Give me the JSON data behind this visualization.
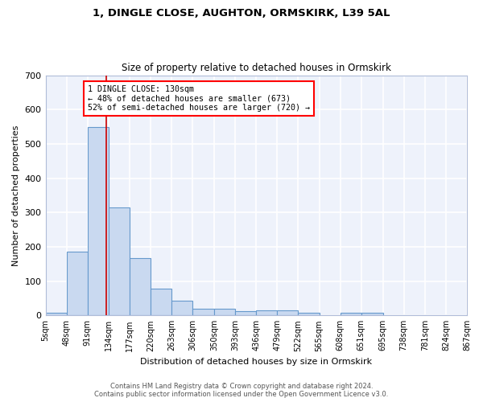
{
  "title1": "1, DINGLE CLOSE, AUGHTON, ORMSKIRK, L39 5AL",
  "title2": "Size of property relative to detached houses in Ormskirk",
  "xlabel": "Distribution of detached houses by size in Ormskirk",
  "ylabel": "Number of detached properties",
  "bar_edges": [
    5,
    48,
    91,
    134,
    177,
    220,
    263,
    306,
    350,
    393,
    436,
    479,
    522,
    565,
    608,
    651,
    695,
    738,
    781,
    824,
    867
  ],
  "bar_heights": [
    8,
    185,
    548,
    315,
    168,
    77,
    42,
    20,
    20,
    13,
    15,
    15,
    8,
    0,
    7,
    8,
    0,
    0,
    0,
    0
  ],
  "bar_color": "#c9d9f0",
  "bar_edge_color": "#6699cc",
  "bar_linewidth": 0.8,
  "red_line_x": 130,
  "annotation_text": "1 DINGLE CLOSE: 130sqm\n← 48% of detached houses are smaller (673)\n52% of semi-detached houses are larger (720) →",
  "annotation_box_color": "white",
  "annotation_box_edge": "red",
  "ylim": [
    0,
    700
  ],
  "yticks": [
    0,
    100,
    200,
    300,
    400,
    500,
    600,
    700
  ],
  "background_color": "#eef2fb",
  "grid_color": "white",
  "footer": "Contains HM Land Registry data © Crown copyright and database right 2024.\nContains public sector information licensed under the Open Government Licence v3.0.",
  "tick_labels": [
    "5sqm",
    "48sqm",
    "91sqm",
    "134sqm",
    "177sqm",
    "220sqm",
    "263sqm",
    "306sqm",
    "350sqm",
    "393sqm",
    "436sqm",
    "479sqm",
    "522sqm",
    "565sqm",
    "608sqm",
    "651sqm",
    "695sqm",
    "738sqm",
    "781sqm",
    "824sqm",
    "867sqm"
  ]
}
